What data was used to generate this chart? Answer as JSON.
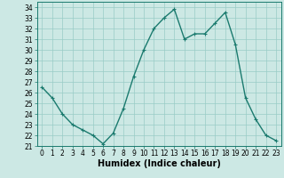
{
  "x": [
    0,
    1,
    2,
    3,
    4,
    5,
    6,
    7,
    8,
    9,
    10,
    11,
    12,
    13,
    14,
    15,
    16,
    17,
    18,
    19,
    20,
    21,
    22,
    23
  ],
  "y": [
    26.5,
    25.5,
    24.0,
    23.0,
    22.5,
    22.0,
    21.2,
    22.2,
    24.5,
    27.5,
    30.0,
    32.0,
    33.0,
    33.8,
    31.0,
    31.5,
    31.5,
    32.5,
    33.5,
    30.5,
    25.5,
    23.5,
    22.0,
    21.5
  ],
  "line_color": "#1a7a6e",
  "marker": "+",
  "marker_size": 3,
  "bg_color": "#cce8e4",
  "grid_color": "#99ccc6",
  "xlabel": "Humidex (Indice chaleur)",
  "ylim": [
    21,
    34.5
  ],
  "xlim": [
    -0.5,
    23.5
  ],
  "yticks": [
    21,
    22,
    23,
    24,
    25,
    26,
    27,
    28,
    29,
    30,
    31,
    32,
    33,
    34
  ],
  "xticks": [
    0,
    1,
    2,
    3,
    4,
    5,
    6,
    7,
    8,
    9,
    10,
    11,
    12,
    13,
    14,
    15,
    16,
    17,
    18,
    19,
    20,
    21,
    22,
    23
  ],
  "tick_label_size": 5.5,
  "xlabel_fontsize": 7,
  "line_width": 1.0
}
